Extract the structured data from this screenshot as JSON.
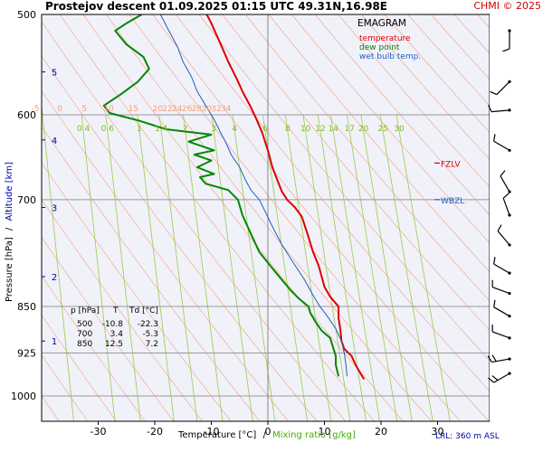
{
  "header": {
    "title": "Prostejov  descent  01.09.2025 01:15 UTC  49.31N,16.98E",
    "copyright": "CHMI © 2025"
  },
  "legend": {
    "title": "EMAGRAM",
    "temperature": "temperature",
    "dew_point": "dew point",
    "wet_bulb": "wet bulb temp."
  },
  "axes": {
    "ylabel_pressure": "Pressure [hPa]",
    "ylabel_sep": "/",
    "ylabel_altitude": "Altitude [km]",
    "xlabel_temperature": "Temperature [°C]",
    "xlabel_sep": "/",
    "xlabel_mixing": "Mixing ratio [g/kg]",
    "lrl": "LRL: 360 m ASL"
  },
  "levels": {
    "fzlv": "FZLV",
    "wbzl": "WBZL"
  },
  "table": {
    "headers": [
      "p [hPa]",
      "T",
      "Td [°C]"
    ],
    "rows": [
      [
        "500",
        "-10.8",
        "-22.3"
      ],
      [
        "700",
        "3.4",
        "-5.3"
      ],
      [
        "850",
        "12.5",
        "7.2"
      ]
    ]
  },
  "chart_data": {
    "type": "line",
    "title": "Prostejov  descent  01.09.2025 01:15 UTC  49.31N,16.98E",
    "xlabel": "Temperature [°C]",
    "ylabel": "Pressure [hPa]",
    "xlim": [
      -40,
      40
    ],
    "ylim": [
      1000,
      500
    ],
    "y_scale": "log",
    "grid": true,
    "x_ticks": [
      -30,
      -20,
      -10,
      0,
      10,
      20,
      30
    ],
    "pressure_ticks": [
      500,
      600,
      700,
      850,
      925,
      1000
    ],
    "altitude_ticks": [
      {
        "label": "1",
        "p": 905
      },
      {
        "label": "2",
        "p": 805
      },
      {
        "label": "3",
        "p": 710
      },
      {
        "label": "4",
        "p": 628
      },
      {
        "label": "5",
        "p": 555
      }
    ],
    "isotherm_labels": [
      "-5",
      "0",
      "5",
      "10",
      "15",
      "20",
      "22",
      "24",
      "26",
      "28",
      "30",
      "32",
      "34"
    ],
    "isotherm_label_temps": [
      -5,
      0,
      5,
      10,
      15,
      20,
      22,
      24,
      26,
      28,
      30,
      32,
      34
    ],
    "mixing_ratio_labels": [
      "0.4",
      "0.6",
      "1",
      "1.4",
      "2",
      "3",
      "4",
      "6",
      "8",
      "10",
      "12",
      "14",
      "17",
      "20",
      "25",
      "30"
    ],
    "mixing_ratio_values": [
      0.4,
      0.6,
      1,
      1.4,
      2,
      3,
      4,
      6,
      8,
      10,
      12,
      14,
      17,
      20,
      25,
      30
    ],
    "colors": {
      "temperature": "#dd0000",
      "dew_point": "#008800",
      "wet_bulb": "#1f5fbf",
      "isotherm": "#f2a07a",
      "mixing_ratio": "#99cc44",
      "grid": "#999999",
      "altitude": "#0000aa"
    },
    "series": [
      {
        "name": "temperature",
        "points": [
          [
            17.0,
            970
          ],
          [
            16.5,
            962
          ],
          [
            15.5,
            945
          ],
          [
            14.8,
            930
          ],
          [
            13.5,
            918
          ],
          [
            13.0,
            905
          ],
          [
            12.8,
            885
          ],
          [
            12.5,
            868
          ],
          [
            12.5,
            850
          ],
          [
            11.0,
            835
          ],
          [
            10.0,
            820
          ],
          [
            9.0,
            790
          ],
          [
            8.0,
            770
          ],
          [
            7.0,
            745
          ],
          [
            6.0,
            722
          ],
          [
            4.8,
            710
          ],
          [
            3.4,
            700
          ],
          [
            2.5,
            690
          ],
          [
            1.8,
            678
          ],
          [
            0.8,
            660
          ],
          [
            0.0,
            640
          ],
          [
            -1.0,
            620
          ],
          [
            -2.0,
            605
          ],
          [
            -3.0,
            592
          ],
          [
            -4.5,
            575
          ],
          [
            -5.5,
            562
          ],
          [
            -7.0,
            545
          ],
          [
            -8.0,
            532
          ],
          [
            -9.0,
            520
          ],
          [
            -10.0,
            508
          ],
          [
            -10.8,
            500
          ]
        ]
      },
      {
        "name": "dew point",
        "points": [
          [
            12.5,
            965
          ],
          [
            12.0,
            945
          ],
          [
            12.0,
            930
          ],
          [
            11.5,
            915
          ],
          [
            11.0,
            900
          ],
          [
            9.5,
            888
          ],
          [
            8.5,
            875
          ],
          [
            7.5,
            860
          ],
          [
            7.2,
            850
          ],
          [
            5.5,
            838
          ],
          [
            4.0,
            825
          ],
          [
            2.5,
            810
          ],
          [
            0.5,
            790
          ],
          [
            -1.5,
            770
          ],
          [
            -3.0,
            745
          ],
          [
            -4.5,
            720
          ],
          [
            -5.3,
            700
          ],
          [
            -7.0,
            688
          ],
          [
            -11.0,
            680
          ],
          [
            -12.0,
            672
          ],
          [
            -9.5,
            668
          ],
          [
            -12.5,
            660
          ],
          [
            -10.0,
            652
          ],
          [
            -13.0,
            645
          ],
          [
            -9.5,
            640
          ],
          [
            -14.0,
            630
          ],
          [
            -10.0,
            622
          ],
          [
            -18.0,
            616
          ],
          [
            -23.0,
            606
          ],
          [
            -28.0,
            598
          ],
          [
            -29.0,
            590
          ],
          [
            -26.0,
            578
          ],
          [
            -23.0,
            565
          ],
          [
            -21.0,
            552
          ],
          [
            -22.0,
            540
          ],
          [
            -25.0,
            528
          ],
          [
            -27.0,
            515
          ],
          [
            -25.0,
            508
          ],
          [
            -22.3,
            500
          ]
        ]
      },
      {
        "name": "wet bulb temp.",
        "points": [
          [
            14.0,
            965
          ],
          [
            13.8,
            945
          ],
          [
            13.5,
            925
          ],
          [
            13.0,
            905
          ],
          [
            12.0,
            885
          ],
          [
            10.5,
            865
          ],
          [
            9.2,
            850
          ],
          [
            7.8,
            830
          ],
          [
            6.5,
            810
          ],
          [
            4.5,
            785
          ],
          [
            2.5,
            760
          ],
          [
            0.8,
            735
          ],
          [
            -0.5,
            715
          ],
          [
            -1.5,
            700
          ],
          [
            -3.0,
            688
          ],
          [
            -4.0,
            675
          ],
          [
            -5.0,
            660
          ],
          [
            -6.5,
            645
          ],
          [
            -7.5,
            630
          ],
          [
            -8.5,
            618
          ],
          [
            -9.5,
            605
          ],
          [
            -11.0,
            590
          ],
          [
            -12.5,
            575
          ],
          [
            -13.5,
            560
          ],
          [
            -15.0,
            545
          ],
          [
            -16.0,
            530
          ],
          [
            -17.5,
            515
          ],
          [
            -19.0,
            500
          ]
        ]
      }
    ],
    "levels": [
      {
        "name": "FZLV",
        "p": 655
      },
      {
        "name": "WBZL",
        "p": 700
      }
    ]
  },
  "wind_barbs": [
    {
      "p": 515,
      "dir": 180,
      "barbs": 1
    },
    {
      "p": 565,
      "dir": 225,
      "barbs": 1
    },
    {
      "p": 595,
      "dir": 265,
      "barbs": 1
    },
    {
      "p": 640,
      "dir": 300,
      "barbs": 1
    },
    {
      "p": 690,
      "dir": 330,
      "barbs": 1
    },
    {
      "p": 720,
      "dir": 340,
      "barbs": 1
    },
    {
      "p": 760,
      "dir": 320,
      "barbs": 1
    },
    {
      "p": 800,
      "dir": 300,
      "barbs": 1
    },
    {
      "p": 830,
      "dir": 290,
      "barbs": 1
    },
    {
      "p": 865,
      "dir": 300,
      "barbs": 1
    },
    {
      "p": 900,
      "dir": 290,
      "barbs": 1
    },
    {
      "p": 935,
      "dir": 260,
      "barbs": 2
    },
    {
      "p": 960,
      "dir": 240,
      "barbs": 2
    }
  ]
}
